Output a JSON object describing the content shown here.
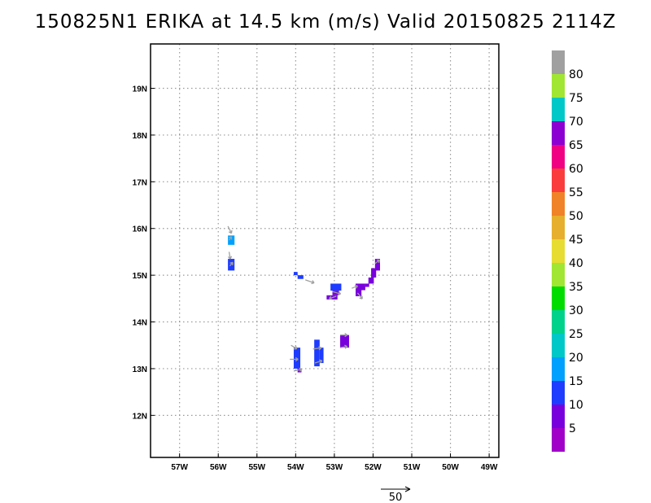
{
  "title": "150825N1 ERIKA at 14.5 km (m/s) Valid 20150825 2114Z",
  "map": {
    "lon_range": [
      -57.75,
      -48.75
    ],
    "lat_range": [
      11.1,
      19.95
    ],
    "x_ticks": [
      {
        "lon": -57,
        "label": "57W"
      },
      {
        "lon": -56,
        "label": "56W"
      },
      {
        "lon": -55,
        "label": "55W"
      },
      {
        "lon": -54,
        "label": "54W"
      },
      {
        "lon": -53,
        "label": "53W"
      },
      {
        "lon": -52,
        "label": "52W"
      },
      {
        "lon": -51,
        "label": "51W"
      },
      {
        "lon": -50,
        "label": "50W"
      },
      {
        "lon": -49,
        "label": "49W"
      }
    ],
    "y_ticks": [
      {
        "lat": 12,
        "label": "12N"
      },
      {
        "lat": 13,
        "label": "13N"
      },
      {
        "lat": 14,
        "label": "14N"
      },
      {
        "lat": 15,
        "label": "15N"
      },
      {
        "lat": 16,
        "label": "16N"
      },
      {
        "lat": 17,
        "label": "17N"
      },
      {
        "lat": 18,
        "label": "18N"
      },
      {
        "lat": 19,
        "label": "19N"
      }
    ],
    "grid": true,
    "wind_cells": [
      {
        "lon0": -55.75,
        "lon1": -55.58,
        "lat0": 15.65,
        "lat1": 15.85,
        "speed": 17
      },
      {
        "lon0": -55.75,
        "lon1": -55.58,
        "lat0": 15.1,
        "lat1": 15.35,
        "speed": 12
      },
      {
        "lon0": -54.05,
        "lon1": -53.95,
        "lat0": 15.0,
        "lat1": 15.07,
        "speed": 12
      },
      {
        "lon0": -53.95,
        "lon1": -53.8,
        "lat0": 14.92,
        "lat1": 15.0,
        "speed": 12
      },
      {
        "lon0": -53.1,
        "lon1": -52.82,
        "lat0": 14.67,
        "lat1": 14.82,
        "speed": 12
      },
      {
        "lon0": -53.05,
        "lon1": -52.88,
        "lat0": 14.57,
        "lat1": 14.67,
        "speed": 8
      },
      {
        "lon0": -53.2,
        "lon1": -52.92,
        "lat0": 14.48,
        "lat1": 14.57,
        "speed": 7
      },
      {
        "lon0": -52.45,
        "lon1": -52.2,
        "lat0": 14.68,
        "lat1": 14.82,
        "speed": 7
      },
      {
        "lon0": -52.45,
        "lon1": -52.3,
        "lat0": 14.55,
        "lat1": 14.68,
        "speed": 7
      },
      {
        "lon0": -52.2,
        "lon1": -52.1,
        "lat0": 14.75,
        "lat1": 14.82,
        "speed": 7
      },
      {
        "lon0": -52.12,
        "lon1": -51.98,
        "lat0": 14.82,
        "lat1": 14.95,
        "speed": 7
      },
      {
        "lon0": -52.05,
        "lon1": -51.92,
        "lat0": 14.95,
        "lat1": 15.15,
        "speed": 7
      },
      {
        "lon0": -51.95,
        "lon1": -51.82,
        "lat0": 15.1,
        "lat1": 15.35,
        "speed": 7
      },
      {
        "lon0": -52.85,
        "lon1": -52.62,
        "lat0": 13.45,
        "lat1": 13.72,
        "speed": 7
      },
      {
        "lon0": -54.05,
        "lon1": -53.88,
        "lat0": 13.0,
        "lat1": 13.45,
        "speed": 12
      },
      {
        "lon0": -53.95,
        "lon1": -53.85,
        "lat0": 12.92,
        "lat1": 13.0,
        "speed": 8
      },
      {
        "lon0": -53.52,
        "lon1": -53.38,
        "lat0": 13.05,
        "lat1": 13.62,
        "speed": 12
      },
      {
        "lon0": -53.38,
        "lon1": -53.28,
        "lat0": 13.12,
        "lat1": 13.45,
        "speed": 12
      }
    ],
    "vectors": [
      {
        "lon": -55.75,
        "lat": 16.05,
        "u": 6,
        "v": -12
      },
      {
        "lon": -55.72,
        "lat": 15.75,
        "u": 4,
        "v": 6
      },
      {
        "lon": -55.72,
        "lat": 15.5,
        "u": 2,
        "v": -12
      },
      {
        "lon": -55.7,
        "lat": 15.2,
        "u": 5,
        "v": 6
      },
      {
        "lon": -53.75,
        "lat": 14.9,
        "u": 15,
        "v": -5
      },
      {
        "lon": -53.05,
        "lat": 14.65,
        "u": 14,
        "v": -4
      },
      {
        "lon": -52.95,
        "lat": 14.55,
        "u": -12,
        "v": -4
      },
      {
        "lon": -52.4,
        "lat": 14.62,
        "u": 8,
        "v": -10
      },
      {
        "lon": -51.95,
        "lat": 15.25,
        "u": 8,
        "v": 6
      },
      {
        "lon": -54.12,
        "lat": 13.5,
        "u": 10,
        "v": -6
      },
      {
        "lon": -54.15,
        "lat": 13.2,
        "u": 14,
        "v": 0
      },
      {
        "lon": -54.05,
        "lat": 12.95,
        "u": 14,
        "v": 3
      },
      {
        "lon": -53.55,
        "lat": 13.42,
        "u": 14,
        "v": 2
      },
      {
        "lon": -53.5,
        "lat": 13.12,
        "u": 12,
        "v": 4
      },
      {
        "lon": -52.85,
        "lat": 13.72,
        "u": 12,
        "v": 0
      },
      {
        "lon": -52.85,
        "lat": 13.45,
        "u": 12,
        "v": 2
      },
      {
        "lon": -52.55,
        "lat": 14.72,
        "u": 10,
        "v": 4
      }
    ]
  },
  "colorbar": {
    "levels": [
      {
        "max": 5,
        "color": "#a000c8",
        "label": "5"
      },
      {
        "max": 10,
        "color": "#7800dc",
        "label": "10"
      },
      {
        "max": 15,
        "color": "#1e3cff",
        "label": "15"
      },
      {
        "max": 20,
        "color": "#00a0ff",
        "label": "20"
      },
      {
        "max": 25,
        "color": "#00c8c8",
        "label": "25"
      },
      {
        "max": 30,
        "color": "#00d28c",
        "label": "30"
      },
      {
        "max": 35,
        "color": "#00dc00",
        "label": "35"
      },
      {
        "max": 40,
        "color": "#a0e632",
        "label": "40"
      },
      {
        "max": 45,
        "color": "#e6dc32",
        "label": "45"
      },
      {
        "max": 50,
        "color": "#e6af2d",
        "label": "50"
      },
      {
        "max": 55,
        "color": "#f08228",
        "label": "55"
      },
      {
        "max": 60,
        "color": "#fa3c3c",
        "label": "60"
      },
      {
        "max": 65,
        "color": "#f00082",
        "label": "65"
      },
      {
        "max": 70,
        "color": "#8c00d2",
        "label": "70"
      },
      {
        "max": 75,
        "color": "#00c8c8",
        "label": "75"
      },
      {
        "max": 80,
        "color": "#a0e632",
        "label": "80"
      },
      {
        "max": 85,
        "color": "#a0a0a0",
        "label": ""
      }
    ]
  },
  "reference_vector": {
    "value": 50,
    "label": "50"
  },
  "colors": {
    "grid": "#999999",
    "vector": "#a0a0a0",
    "frame": "#000000"
  }
}
